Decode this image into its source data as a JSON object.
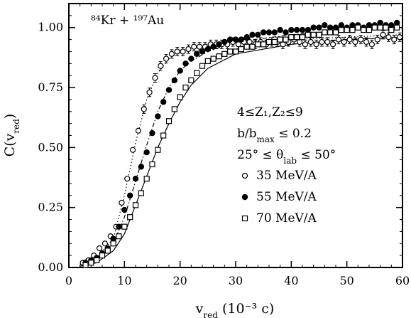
{
  "chart_data": {
    "type": "scatter",
    "title": "⁸⁴Kr + ¹⁹⁷Au",
    "xlabel": "v_red (10⁻³ c)",
    "ylabel": "C(v_red)",
    "xlim": [
      0,
      60
    ],
    "ylim": [
      0,
      1.1
    ],
    "x_ticks": [
      "0",
      "10",
      "20",
      "30",
      "40",
      "50",
      "60"
    ],
    "y_ticks": [
      "0.00",
      "0.25",
      "0.50",
      "0.75",
      "1.00"
    ],
    "grid": false,
    "legend_position": "right",
    "annotations": [
      "4≤Z₁,Z₂≤9",
      "b/b_max ≤ 0.2",
      "25° ≤ θ_lab ≤ 50°"
    ],
    "series": [
      {
        "name": "35 MeV/A",
        "marker": "open-circle",
        "points": [
          [
            2.5,
            0.02
          ],
          [
            3.5,
            0.03
          ],
          [
            4.5,
            0.05
          ],
          [
            5.5,
            0.08
          ],
          [
            6.5,
            0.1
          ],
          [
            7.5,
            0.13
          ],
          [
            8.5,
            0.17
          ],
          [
            9.5,
            0.27
          ],
          [
            10.5,
            0.37
          ],
          [
            11.5,
            0.49
          ],
          [
            12.5,
            0.57
          ],
          [
            13.5,
            0.66
          ],
          [
            14.5,
            0.73
          ],
          [
            15.5,
            0.79
          ],
          [
            16.5,
            0.84
          ],
          [
            17.5,
            0.87
          ],
          [
            18.5,
            0.89
          ],
          [
            19.5,
            0.9
          ],
          [
            20.5,
            0.9
          ],
          [
            21.5,
            0.91
          ],
          [
            22.5,
            0.92
          ],
          [
            23.5,
            0.92
          ],
          [
            24.5,
            0.92
          ],
          [
            25.5,
            0.93
          ],
          [
            26.5,
            0.93
          ],
          [
            27.5,
            0.93
          ],
          [
            28.5,
            0.93
          ],
          [
            29.5,
            0.94
          ],
          [
            30.5,
            0.93
          ],
          [
            31.5,
            0.94
          ],
          [
            32.5,
            0.94
          ],
          [
            33.5,
            0.93
          ],
          [
            34.5,
            0.94
          ],
          [
            35.5,
            0.93
          ],
          [
            36.5,
            0.94
          ],
          [
            37.5,
            0.94
          ],
          [
            38.5,
            0.93
          ],
          [
            39.5,
            0.94
          ],
          [
            40.5,
            0.95
          ],
          [
            41.5,
            0.94
          ],
          [
            42.5,
            0.93
          ],
          [
            43.5,
            0.94
          ],
          [
            44.5,
            0.93
          ],
          [
            45.5,
            0.94
          ],
          [
            46.5,
            0.94
          ],
          [
            47.5,
            0.93
          ],
          [
            48.5,
            0.95
          ],
          [
            49.5,
            0.94
          ],
          [
            50.5,
            0.95
          ],
          [
            51.5,
            0.94
          ],
          [
            52.5,
            0.95
          ],
          [
            53.5,
            0.94
          ],
          [
            54.5,
            0.93
          ],
          [
            55.5,
            0.95
          ],
          [
            56.5,
            0.97
          ],
          [
            57.5,
            0.96
          ],
          [
            58.5,
            0.95
          ],
          [
            59.5,
            0.96
          ]
        ]
      },
      {
        "name": "55 MeV/A",
        "marker": "filled-circle",
        "points": [
          [
            3,
            0.02
          ],
          [
            4,
            0.03
          ],
          [
            5,
            0.04
          ],
          [
            6,
            0.06
          ],
          [
            7,
            0.08
          ],
          [
            8,
            0.12
          ],
          [
            9,
            0.17
          ],
          [
            10,
            0.24
          ],
          [
            11,
            0.3
          ],
          [
            12,
            0.37
          ],
          [
            13,
            0.42
          ],
          [
            14,
            0.48
          ],
          [
            15,
            0.56
          ],
          [
            16,
            0.63
          ],
          [
            17,
            0.69
          ],
          [
            18,
            0.74
          ],
          [
            19,
            0.78
          ],
          [
            20,
            0.82
          ],
          [
            21,
            0.85
          ],
          [
            22,
            0.87
          ],
          [
            23,
            0.89
          ],
          [
            24,
            0.9
          ],
          [
            25,
            0.91
          ],
          [
            26,
            0.92
          ],
          [
            27,
            0.93
          ],
          [
            28,
            0.94
          ],
          [
            29,
            0.95
          ],
          [
            30,
            0.95
          ],
          [
            31,
            0.95
          ],
          [
            32,
            0.96
          ],
          [
            33,
            0.97
          ],
          [
            34,
            0.97
          ],
          [
            35,
            0.98
          ],
          [
            36,
            0.98
          ],
          [
            37,
            0.98
          ],
          [
            38,
            0.99
          ],
          [
            39,
            0.98
          ],
          [
            40,
            0.99
          ],
          [
            41,
            0.99
          ],
          [
            42,
            0.99
          ],
          [
            43,
            0.99
          ],
          [
            44,
            1.0
          ],
          [
            45,
            1.0
          ],
          [
            46,
            1.01
          ],
          [
            47,
            1.0
          ],
          [
            48,
            1.0
          ],
          [
            49,
            1.01
          ],
          [
            50,
            1.0
          ],
          [
            51,
            1.01
          ],
          [
            52,
            1.01
          ],
          [
            53,
            1.0
          ],
          [
            54,
            1.01
          ],
          [
            55,
            1.01
          ],
          [
            56,
            1.02
          ],
          [
            57,
            1.01
          ],
          [
            58,
            1.01
          ],
          [
            59,
            1.02
          ]
        ]
      },
      {
        "name": "70 MeV/A",
        "marker": "open-square",
        "points": [
          [
            3,
            0.01
          ],
          [
            4,
            0.02
          ],
          [
            5,
            0.03
          ],
          [
            6,
            0.05
          ],
          [
            7,
            0.07
          ],
          [
            8,
            0.1
          ],
          [
            9,
            0.13
          ],
          [
            10,
            0.17
          ],
          [
            11,
            0.21
          ],
          [
            12,
            0.26
          ],
          [
            13,
            0.31
          ],
          [
            14,
            0.37
          ],
          [
            15,
            0.43
          ],
          [
            16,
            0.49
          ],
          [
            17,
            0.55
          ],
          [
            18,
            0.61
          ],
          [
            19,
            0.66
          ],
          [
            20,
            0.71
          ],
          [
            21,
            0.75
          ],
          [
            22,
            0.78
          ],
          [
            23,
            0.81
          ],
          [
            24,
            0.84
          ],
          [
            25,
            0.86
          ],
          [
            26,
            0.87
          ],
          [
            27,
            0.88
          ],
          [
            28,
            0.89
          ],
          [
            29,
            0.9
          ],
          [
            30,
            0.9
          ],
          [
            31,
            0.91
          ],
          [
            32,
            0.92
          ],
          [
            33,
            0.92
          ],
          [
            34,
            0.93
          ],
          [
            35,
            0.93
          ],
          [
            36,
            0.94
          ],
          [
            37,
            0.94
          ],
          [
            38,
            0.95
          ],
          [
            39,
            0.95
          ],
          [
            40,
            0.96
          ],
          [
            41,
            0.96
          ],
          [
            42,
            0.96
          ],
          [
            43,
            0.97
          ],
          [
            44,
            0.97
          ],
          [
            45,
            0.97
          ],
          [
            46,
            0.98
          ],
          [
            47,
            0.98
          ],
          [
            48,
            0.98
          ],
          [
            49,
            0.99
          ],
          [
            50,
            0.99
          ],
          [
            51,
            0.99
          ],
          [
            52,
            1.0
          ],
          [
            53,
            0.99
          ],
          [
            54,
            0.99
          ],
          [
            55,
            1.0
          ],
          [
            56,
            1.0
          ],
          [
            57,
            1.0
          ],
          [
            58,
            0.99
          ],
          [
            59,
            1.0
          ]
        ]
      }
    ],
    "lines": [
      {
        "style": "dotted",
        "points": [
          [
            2,
            0.01
          ],
          [
            5,
            0.04
          ],
          [
            8,
            0.12
          ],
          [
            10,
            0.3
          ],
          [
            12,
            0.52
          ],
          [
            14,
            0.7
          ],
          [
            16,
            0.81
          ],
          [
            18,
            0.87
          ],
          [
            20,
            0.9
          ],
          [
            25,
            0.93
          ],
          [
            30,
            0.94
          ],
          [
            40,
            0.95
          ],
          [
            50,
            0.96
          ],
          [
            60,
            0.97
          ]
        ]
      },
      {
        "style": "dash-dot",
        "points": [
          [
            2,
            0.01
          ],
          [
            5,
            0.04
          ],
          [
            8,
            0.1
          ],
          [
            10,
            0.21
          ],
          [
            12,
            0.36
          ],
          [
            14,
            0.51
          ],
          [
            16,
            0.65
          ],
          [
            18,
            0.75
          ],
          [
            20,
            0.82
          ],
          [
            22,
            0.86
          ],
          [
            25,
            0.9
          ],
          [
            30,
            0.94
          ],
          [
            40,
            0.97
          ],
          [
            50,
            0.99
          ],
          [
            60,
            1.0
          ]
        ]
      },
      {
        "style": "solid",
        "points": [
          [
            2,
            0.005
          ],
          [
            5,
            0.02
          ],
          [
            8,
            0.07
          ],
          [
            10,
            0.14
          ],
          [
            12,
            0.26
          ],
          [
            14,
            0.38
          ],
          [
            16,
            0.5
          ],
          [
            18,
            0.6
          ],
          [
            20,
            0.69
          ],
          [
            22,
            0.76
          ],
          [
            25,
            0.83
          ],
          [
            30,
            0.89
          ],
          [
            40,
            0.93
          ],
          [
            50,
            0.95
          ],
          [
            60,
            0.96
          ]
        ]
      }
    ]
  }
}
